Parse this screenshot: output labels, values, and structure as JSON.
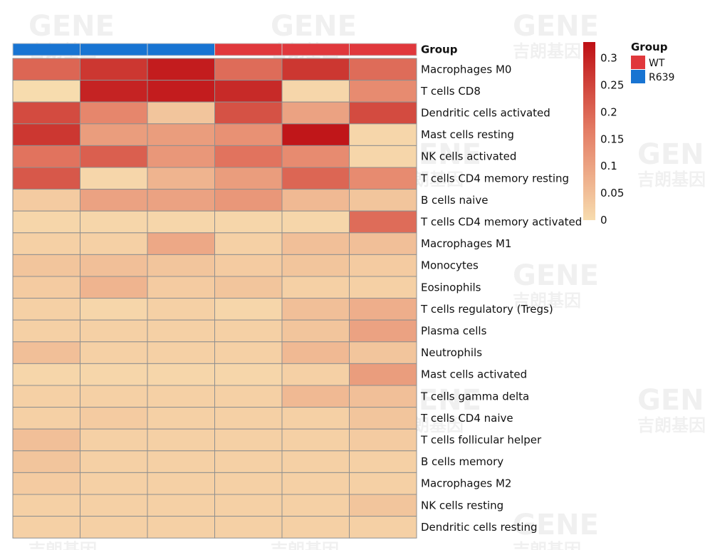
{
  "chart_data": {
    "type": "heatmap",
    "title": "",
    "annotation_label": "Group",
    "columns": [
      {
        "group": "R639"
      },
      {
        "group": "R639"
      },
      {
        "group": "R639"
      },
      {
        "group": "WT"
      },
      {
        "group": "WT"
      },
      {
        "group": "WT"
      }
    ],
    "rows": [
      {
        "label": "Macrophages M0",
        "values": [
          0.2,
          0.27,
          0.31,
          0.19,
          0.27,
          0.19
        ]
      },
      {
        "label": "T cells CD8",
        "values": [
          0.0,
          0.3,
          0.31,
          0.29,
          0.01,
          0.14
        ]
      },
      {
        "label": "Dendritic cells activated",
        "values": [
          0.24,
          0.15,
          0.04,
          0.23,
          0.1,
          0.24
        ]
      },
      {
        "label": "Mast cells resting",
        "values": [
          0.27,
          0.11,
          0.11,
          0.13,
          0.32,
          0.01
        ]
      },
      {
        "label": "NK cells activated",
        "values": [
          0.18,
          0.21,
          0.12,
          0.18,
          0.14,
          0.01
        ]
      },
      {
        "label": "T cells CD4 memory resting",
        "values": [
          0.22,
          0.01,
          0.07,
          0.11,
          0.2,
          0.14
        ]
      },
      {
        "label": "B cells naive",
        "values": [
          0.03,
          0.1,
          0.1,
          0.12,
          0.06,
          0.04
        ]
      },
      {
        "label": "T cells CD4 memory activated",
        "values": [
          0.01,
          0.01,
          0.01,
          0.01,
          0.01,
          0.19
        ]
      },
      {
        "label": "Macrophages M1",
        "values": [
          0.02,
          0.02,
          0.09,
          0.02,
          0.05,
          0.05
        ]
      },
      {
        "label": "Monocytes",
        "values": [
          0.04,
          0.05,
          0.04,
          0.03,
          0.04,
          0.03
        ]
      },
      {
        "label": "Eosinophils",
        "values": [
          0.03,
          0.07,
          0.03,
          0.04,
          0.02,
          0.02
        ]
      },
      {
        "label": "T cells regulatory (Tregs)",
        "values": [
          0.02,
          0.01,
          0.02,
          0.01,
          0.05,
          0.08
        ]
      },
      {
        "label": "Plasma cells",
        "values": [
          0.02,
          0.02,
          0.02,
          0.02,
          0.04,
          0.1
        ]
      },
      {
        "label": "Neutrophils",
        "values": [
          0.05,
          0.02,
          0.02,
          0.02,
          0.06,
          0.04
        ]
      },
      {
        "label": "Mast cells activated",
        "values": [
          0.01,
          0.01,
          0.01,
          0.01,
          0.02,
          0.11
        ]
      },
      {
        "label": "T cells gamma delta",
        "values": [
          0.02,
          0.02,
          0.02,
          0.02,
          0.06,
          0.05
        ]
      },
      {
        "label": "T cells CD4 naive",
        "values": [
          0.02,
          0.03,
          0.02,
          0.02,
          0.02,
          0.04
        ]
      },
      {
        "label": "T cells follicular helper",
        "values": [
          0.05,
          0.02,
          0.02,
          0.02,
          0.02,
          0.03
        ]
      },
      {
        "label": "B cells memory",
        "values": [
          0.04,
          0.02,
          0.02,
          0.02,
          0.02,
          0.02
        ]
      },
      {
        "label": "Macrophages M2",
        "values": [
          0.03,
          0.02,
          0.02,
          0.02,
          0.02,
          0.02
        ]
      },
      {
        "label": "NK cells resting",
        "values": [
          0.02,
          0.02,
          0.02,
          0.02,
          0.02,
          0.04
        ]
      },
      {
        "label": "Dendritic cells resting",
        "values": [
          0.02,
          0.02,
          0.02,
          0.02,
          0.02,
          0.02
        ]
      }
    ],
    "colorbar": {
      "min": 0,
      "max": 0.33,
      "ticks": [
        {
          "value": 0.3,
          "label": "0.3"
        },
        {
          "value": 0.25,
          "label": "0.25"
        },
        {
          "value": 0.2,
          "label": "0.2"
        },
        {
          "value": 0.15,
          "label": "0.15"
        },
        {
          "value": 0.1,
          "label": "0.1"
        },
        {
          "value": 0.05,
          "label": "0.05"
        },
        {
          "value": 0,
          "label": "0"
        }
      ],
      "low_color": "#f7dcae",
      "mid_color": "#e47d65",
      "high_color": "#be0f14"
    },
    "legend": {
      "title": "Group",
      "position": "top-right",
      "entries": [
        {
          "name": "WT",
          "color": "#e0383c"
        },
        {
          "name": "R639",
          "color": "#1874d2"
        }
      ]
    }
  },
  "watermark": {
    "text": "GENE",
    "subtext": "吉朗基因"
  }
}
